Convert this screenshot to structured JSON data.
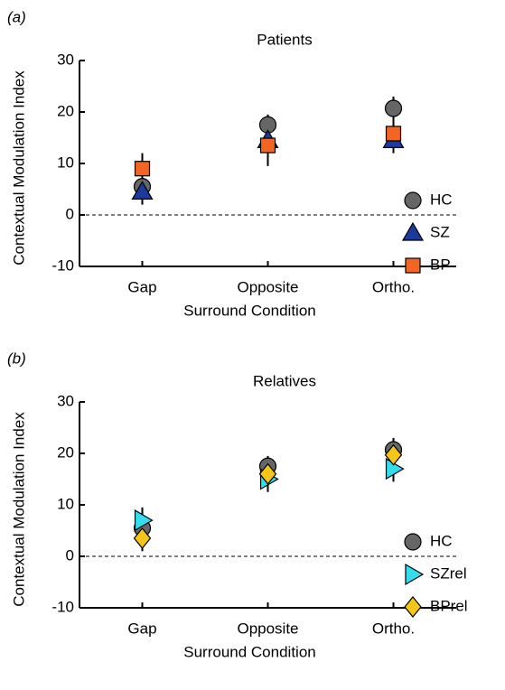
{
  "chart_data": [
    {
      "type": "point",
      "panel_label": "(a)",
      "title": "Patients",
      "xlabel": "Surround Condition",
      "ylabel": "Contextual Modulation Index",
      "categories": [
        "Gap",
        "Opposite",
        "Ortho."
      ],
      "ylim": [
        -10,
        30
      ],
      "yticks": [
        -10,
        0,
        10,
        20,
        30
      ],
      "zero_line": 0,
      "legend": "right",
      "series": [
        {
          "name": "HC",
          "color": "#666666",
          "marker": "circle",
          "values": [
            5.5,
            17.5,
            20.7
          ],
          "errors": [
            2.5,
            2.0,
            2.3
          ]
        },
        {
          "name": "SZ",
          "color": "#1a3a9c",
          "marker": "triangle-up",
          "values": [
            4.5,
            14.5,
            14.5
          ],
          "errors": [
            2.5,
            3.5,
            2.5
          ]
        },
        {
          "name": "BP",
          "color": "#f26522",
          "marker": "square",
          "values": [
            9,
            13.5,
            15.8
          ],
          "errors": [
            3.0,
            4.0,
            3.0
          ]
        }
      ]
    },
    {
      "type": "point",
      "panel_label": "(b)",
      "title": "Relatives",
      "xlabel": "Surround Condition",
      "ylabel": "Contextual Modulation Index",
      "categories": [
        "Gap",
        "Opposite",
        "Ortho."
      ],
      "ylim": [
        -10,
        30
      ],
      "yticks": [
        -10,
        0,
        10,
        20,
        30
      ],
      "zero_line": 0,
      "legend": "right",
      "series": [
        {
          "name": "HC",
          "color": "#666666",
          "marker": "circle",
          "values": [
            5.5,
            17.5,
            20.7
          ],
          "errors": [
            2.5,
            2.0,
            2.3
          ]
        },
        {
          "name": "SZrel",
          "color": "#33ddee",
          "marker": "triangle-right",
          "values": [
            7,
            15,
            17
          ],
          "errors": [
            2.5,
            2.5,
            2.5
          ]
        },
        {
          "name": "BPrel",
          "color": "#f5c518",
          "marker": "diamond",
          "values": [
            3.5,
            16,
            19.7
          ],
          "errors": [
            2.5,
            2.0,
            2.0
          ]
        }
      ]
    }
  ]
}
